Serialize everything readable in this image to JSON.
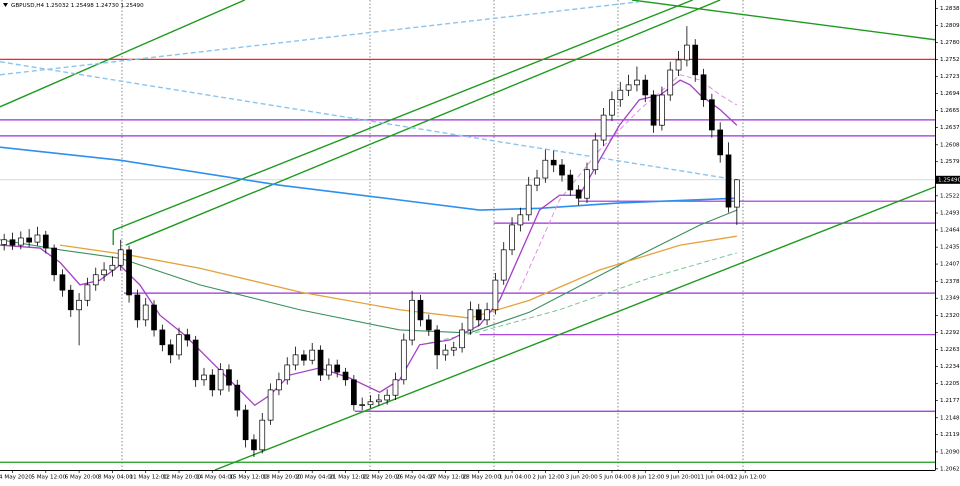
{
  "header": "GBPUSD,H4  1.25032 1.25498 1.24730 1.25490",
  "chart_data": {
    "type": "candlestick",
    "xlim": [
      -0.5,
      111.8
    ],
    "ylim": [
      1.206,
      1.2852
    ],
    "yticks": [
      {
        "value": 1.2838,
        "label": "1.28380"
      },
      {
        "value": 1.2809,
        "label": "1.28090"
      },
      {
        "value": 1.27805,
        "label": "1.27805"
      },
      {
        "value": 1.2752,
        "label": "1.27520"
      },
      {
        "value": 1.2723,
        "label": "1.27230"
      },
      {
        "value": 1.26945,
        "label": "1.26945"
      },
      {
        "value": 1.26655,
        "label": "1.26655"
      },
      {
        "value": 1.2637,
        "label": "1.26370"
      },
      {
        "value": 1.2608,
        "label": "1.26080"
      },
      {
        "value": 1.25795,
        "label": "1.25795"
      },
      {
        "value": 1.2522,
        "label": "1.25220"
      },
      {
        "value": 1.2493,
        "label": "1.24930"
      },
      {
        "value": 1.24645,
        "label": "1.24645"
      },
      {
        "value": 1.24355,
        "label": "1.24355"
      },
      {
        "value": 1.2407,
        "label": "1.24070"
      },
      {
        "value": 1.2378,
        "label": "1.23780"
      },
      {
        "value": 1.23495,
        "label": "1.23495"
      },
      {
        "value": 1.23205,
        "label": "1.23205"
      },
      {
        "value": 1.2292,
        "label": "1.22920"
      },
      {
        "value": 1.2263,
        "label": "1.22630"
      },
      {
        "value": 1.22345,
        "label": "1.22345"
      },
      {
        "value": 1.22055,
        "label": "1.22055"
      },
      {
        "value": 1.2177,
        "label": "1.21770"
      },
      {
        "value": 1.2148,
        "label": "1.21480"
      },
      {
        "value": 1.21195,
        "label": "1.21195"
      },
      {
        "value": 1.20905,
        "label": "1.20905"
      },
      {
        "value": 1.2062,
        "label": "1.20620"
      }
    ],
    "current_price": {
      "value": 1.2549,
      "label": "1.25490"
    },
    "xticks": [
      {
        "value": 1,
        "label": "4 May 2020"
      },
      {
        "value": 5,
        "label": "5 May 12:00"
      },
      {
        "value": 9,
        "label": "6 May 20:00"
      },
      {
        "value": 13,
        "label": "8 May 04:00"
      },
      {
        "value": 17,
        "label": "11 May 12:00"
      },
      {
        "value": 21,
        "label": "12 May 20:00"
      },
      {
        "value": 25,
        "label": "14 May 04:00"
      },
      {
        "value": 29,
        "label": "15 May 12:00"
      },
      {
        "value": 33,
        "label": "18 May 20:00"
      },
      {
        "value": 37,
        "label": "20 May 04:00"
      },
      {
        "value": 41,
        "label": "21 May 12:00"
      },
      {
        "value": 45,
        "label": "22 May 20:00"
      },
      {
        "value": 49,
        "label": "26 May 04:00"
      },
      {
        "value": 53,
        "label": "27 May 12:00"
      },
      {
        "value": 57,
        "label": "28 May 20:00"
      },
      {
        "value": 61,
        "label": "1 Jun 04:00"
      },
      {
        "value": 65,
        "label": "2 Jun 12:00"
      },
      {
        "value": 69,
        "label": "3 Jun 20:00"
      },
      {
        "value": 73,
        "label": "5 Jun 04:00"
      },
      {
        "value": 77,
        "label": "8 Jun 12:00"
      },
      {
        "value": 81,
        "label": "9 Jun 20:00"
      },
      {
        "value": 85,
        "label": "11 Jun 04:00"
      },
      {
        "value": 89,
        "label": "12 Jun 12:00"
      }
    ],
    "candles": [
      [
        1.244,
        1.2458,
        1.243,
        1.2448
      ],
      [
        1.2448,
        1.246,
        1.2431,
        1.2439
      ],
      [
        1.2439,
        1.2462,
        1.2432,
        1.2451
      ],
      [
        1.2451,
        1.2466,
        1.2436,
        1.2444
      ],
      [
        1.2444,
        1.247,
        1.2438,
        1.2456
      ],
      [
        1.2456,
        1.2463,
        1.2425,
        1.2434
      ],
      [
        1.2434,
        1.244,
        1.2378,
        1.2389
      ],
      [
        1.2389,
        1.2398,
        1.2352,
        1.2363
      ],
      [
        1.2363,
        1.2372,
        1.2318,
        1.233
      ],
      [
        1.233,
        1.2358,
        1.227,
        1.2346
      ],
      [
        1.2346,
        1.2384,
        1.2336,
        1.2372
      ],
      [
        1.2372,
        1.2401,
        1.2362,
        1.2389
      ],
      [
        1.2389,
        1.241,
        1.2378,
        1.2397
      ],
      [
        1.2397,
        1.242,
        1.2386,
        1.2405
      ],
      [
        1.2405,
        1.2448,
        1.2396,
        1.2431
      ],
      [
        1.2431,
        1.2438,
        1.2342,
        1.2355
      ],
      [
        1.2355,
        1.2364,
        1.23,
        1.2313
      ],
      [
        1.2313,
        1.235,
        1.2302,
        1.2338
      ],
      [
        1.2338,
        1.2346,
        1.2285,
        1.2296
      ],
      [
        1.2296,
        1.2305,
        1.226,
        1.2271
      ],
      [
        1.2271,
        1.228,
        1.224,
        1.2254
      ],
      [
        1.2254,
        1.23,
        1.2246,
        1.2288
      ],
      [
        1.2288,
        1.2298,
        1.2268,
        1.2279
      ],
      [
        1.2279,
        1.2286,
        1.22,
        1.2212
      ],
      [
        1.2212,
        1.2232,
        1.2202,
        1.222
      ],
      [
        1.222,
        1.223,
        1.2184,
        1.2195
      ],
      [
        1.2195,
        1.224,
        1.2186,
        1.2229
      ],
      [
        1.2229,
        1.2238,
        1.2192,
        1.2203
      ],
      [
        1.2203,
        1.2212,
        1.215,
        1.2161
      ],
      [
        1.2161,
        1.217,
        1.2098,
        1.2111
      ],
      [
        1.2111,
        1.212,
        1.2082,
        1.2094
      ],
      [
        1.2094,
        1.2156,
        1.2088,
        1.2144
      ],
      [
        1.2144,
        1.2206,
        1.2136,
        1.2195
      ],
      [
        1.2195,
        1.2224,
        1.2186,
        1.2212
      ],
      [
        1.2212,
        1.225,
        1.2204,
        1.2237
      ],
      [
        1.2237,
        1.2268,
        1.2228,
        1.2254
      ],
      [
        1.2254,
        1.2262,
        1.2236,
        1.2245
      ],
      [
        1.2245,
        1.2274,
        1.2238,
        1.2262
      ],
      [
        1.2262,
        1.227,
        1.221,
        1.222
      ],
      [
        1.222,
        1.2248,
        1.2212,
        1.2237
      ],
      [
        1.2237,
        1.2246,
        1.2216,
        1.2225
      ],
      [
        1.2225,
        1.2232,
        1.2202,
        1.2212
      ],
      [
        1.2212,
        1.222,
        1.216,
        1.217
      ],
      [
        1.217,
        1.2182,
        1.2161,
        1.217
      ],
      [
        1.217,
        1.2186,
        1.2164,
        1.2175
      ],
      [
        1.2175,
        1.2188,
        1.2168,
        1.2178
      ],
      [
        1.2178,
        1.2196,
        1.217,
        1.2186
      ],
      [
        1.2186,
        1.2224,
        1.2178,
        1.2212
      ],
      [
        1.2212,
        1.229,
        1.2204,
        1.2279
      ],
      [
        1.2279,
        1.2362,
        1.227,
        1.2346
      ],
      [
        1.2346,
        1.2355,
        1.2302,
        1.2313
      ],
      [
        1.2313,
        1.2322,
        1.2286,
        1.2296
      ],
      [
        1.2296,
        1.2304,
        1.223,
        1.2254
      ],
      [
        1.2254,
        1.2272,
        1.2244,
        1.2262
      ],
      [
        1.2262,
        1.2276,
        1.2252,
        1.2266
      ],
      [
        1.2266,
        1.2308,
        1.2258,
        1.2296
      ],
      [
        1.2296,
        1.2344,
        1.2288,
        1.233
      ],
      [
        1.233,
        1.234,
        1.2302,
        1.2313
      ],
      [
        1.2313,
        1.2342,
        1.2304,
        1.233
      ],
      [
        1.233,
        1.2392,
        1.2322,
        1.238
      ],
      [
        1.238,
        1.2444,
        1.2372,
        1.2431
      ],
      [
        1.2431,
        1.2486,
        1.2422,
        1.2473
      ],
      [
        1.2473,
        1.2502,
        1.2462,
        1.249
      ],
      [
        1.249,
        1.2554,
        1.248,
        1.254
      ],
      [
        1.254,
        1.2566,
        1.253,
        1.2552
      ],
      [
        1.2552,
        1.26,
        1.2544,
        1.2582
      ],
      [
        1.2582,
        1.2598,
        1.2562,
        1.2574
      ],
      [
        1.2574,
        1.2584,
        1.2546,
        1.2557
      ],
      [
        1.2557,
        1.2566,
        1.2522,
        1.2532
      ],
      [
        1.2532,
        1.254,
        1.2506,
        1.2518
      ],
      [
        1.2518,
        1.2578,
        1.251,
        1.2566
      ],
      [
        1.2566,
        1.2628,
        1.2558,
        1.2616
      ],
      [
        1.2616,
        1.267,
        1.2606,
        1.2658
      ],
      [
        1.2658,
        1.2698,
        1.2648,
        1.2684
      ],
      [
        1.2684,
        1.2714,
        1.2672,
        1.27
      ],
      [
        1.27,
        1.2726,
        1.269,
        1.2709
      ],
      [
        1.2709,
        1.274,
        1.2698,
        1.2717
      ],
      [
        1.2717,
        1.2726,
        1.268,
        1.2692
      ],
      [
        1.2692,
        1.27,
        1.2628,
        1.2641
      ],
      [
        1.2641,
        1.2706,
        1.2632,
        1.2692
      ],
      [
        1.2692,
        1.2748,
        1.2682,
        1.2734
      ],
      [
        1.2734,
        1.2766,
        1.2724,
        1.2751
      ],
      [
        1.2751,
        1.2808,
        1.274,
        1.2776
      ],
      [
        1.2776,
        1.2786,
        1.2714,
        1.2726
      ],
      [
        1.2726,
        1.2736,
        1.2672,
        1.2684
      ],
      [
        1.2684,
        1.2694,
        1.262,
        1.2633
      ],
      [
        1.2633,
        1.2646,
        1.2578,
        1.2591
      ],
      [
        1.2591,
        1.2612,
        1.2494,
        1.2503
      ],
      [
        1.2503,
        1.255,
        1.2473,
        1.2549
      ]
    ],
    "levels": [
      {
        "value": 1.2752,
        "color": "#ff2020"
      },
      {
        "value": 1.265,
        "color": "#9b30d9"
      },
      {
        "value": 1.2623,
        "color": "#9b30d9"
      },
      {
        "value": 1.2513,
        "color": "#9b30d9",
        "start": 69
      },
      {
        "value": 1.2476,
        "color": "#9b30d9",
        "start": 58.8
      },
      {
        "value": 1.2358,
        "color": "#9b30d9",
        "start": 14.4
      },
      {
        "value": 1.2288,
        "color": "#9b30d9",
        "start": 57.1
      },
      {
        "value": 1.2159,
        "color": "#9b30d9",
        "start": 42.1
      },
      {
        "value": 1.2073,
        "color": "#1f9a1f"
      }
    ],
    "trendlines": [
      {
        "color": "#1f9a1f",
        "x": [
          -0.5,
          28.9
        ],
        "values": [
          1.2672,
          1.2852
        ]
      },
      {
        "color": "#1f9a1f",
        "x": [
          13.1,
          82.7
        ],
        "values": [
          1.2464,
          1.2852
        ]
      },
      {
        "color": "#1f9a1f",
        "x": [
          14.6,
          86.0
        ],
        "values": [
          1.2439,
          1.2852
        ]
      },
      {
        "color": "#1f9a1f",
        "x": [
          13.1,
          13.1
        ],
        "values": [
          1.2464,
          1.2439
        ]
      },
      {
        "color": "#1f9a1f",
        "x": [
          25.3,
          111.8
        ],
        "values": [
          1.206,
          1.2537
        ]
      },
      {
        "color": "#1f9a1f",
        "x": [
          75.4,
          111.8
        ],
        "values": [
          1.2852,
          1.2785
        ]
      },
      {
        "color": "#8cc4ee",
        "dashed": true,
        "x": [
          -0.5,
          76.3
        ],
        "values": [
          1.2726,
          1.2849
        ]
      },
      {
        "color": "#8cc4ee",
        "dashed": true,
        "x": [
          -0.5,
          88.0
        ],
        "values": [
          1.2748,
          1.2549
        ]
      }
    ],
    "moving_averages": [
      {
        "color": "#2f8fef",
        "width": 1.6,
        "x": [
          -0.5,
          13.9,
          33.1,
          47.5,
          57.1,
          64.3,
          73.9,
          88.0
        ],
        "values": [
          1.2604,
          1.2582,
          1.254,
          1.2515,
          1.2498,
          1.2501,
          1.251,
          1.2518
        ]
      },
      {
        "color": "#3a8f5e",
        "width": 1.1,
        "x": [
          -0.5,
          6.7,
          13.9,
          23.5,
          35.5,
          47.5,
          55.9,
          63.1,
          73.9,
          83.6,
          88.0
        ],
        "values": [
          1.2448,
          1.2431,
          1.2417,
          1.2372,
          1.233,
          1.2296,
          1.2291,
          1.2326,
          1.2405,
          1.2473,
          1.2498
        ]
      },
      {
        "color": "#e3a23a",
        "width": 1.3,
        "x": [
          6.7,
          15.1,
          23.5,
          35.5,
          47.5,
          55.9,
          63.1,
          71.5,
          81.2,
          88.0
        ],
        "values": [
          1.2439,
          1.2422,
          1.24,
          1.236,
          1.233,
          1.2316,
          1.2346,
          1.2397,
          1.2439,
          1.2454
        ]
      },
      {
        "color": "#7cc497",
        "width": 1,
        "dashed": true,
        "x": [
          50.0,
          57.1,
          66.7,
          77.6,
          88.0
        ],
        "values": [
          1.2271,
          1.2293,
          1.233,
          1.2384,
          1.2426
        ]
      },
      {
        "color": "#e08fe8",
        "width": 1,
        "dashed": true,
        "x": [
          61.9,
          66.7,
          71.5,
          76.3,
          81.2,
          83.6,
          86.0,
          88.0
        ],
        "values": [
          1.2363,
          1.2515,
          1.2599,
          1.2667,
          1.2726,
          1.2717,
          1.2692,
          1.2675
        ]
      },
      {
        "color": "#a63fc8",
        "width": 1.3,
        "x": [
          -0.5,
          4.3,
          6.7,
          9.1,
          11.5,
          13.9,
          16.3,
          18.7,
          21.7,
          24.7,
          27.7,
          30.1,
          31.9,
          34.3,
          37.9,
          41.5,
          45.1,
          47.5,
          49.9,
          53.5,
          57.1,
          59.5,
          61.9,
          64.3,
          66.7,
          69.1,
          71.5,
          73.9,
          76.3,
          78.8,
          81.2,
          82.4,
          83.6,
          86.0,
          88.0
        ],
        "values": [
          1.2439,
          1.2434,
          1.241,
          1.2372,
          1.238,
          1.2405,
          1.2372,
          1.2321,
          1.2287,
          1.2245,
          1.2203,
          1.2169,
          1.2186,
          1.222,
          1.2232,
          1.2215,
          1.2191,
          1.2212,
          1.2271,
          1.2279,
          1.2304,
          1.2346,
          1.2422,
          1.2498,
          1.2523,
          1.2523,
          1.2582,
          1.2641,
          1.2684,
          1.2692,
          1.2717,
          1.2709,
          1.2692,
          1.2667,
          1.2641
        ]
      }
    ]
  }
}
